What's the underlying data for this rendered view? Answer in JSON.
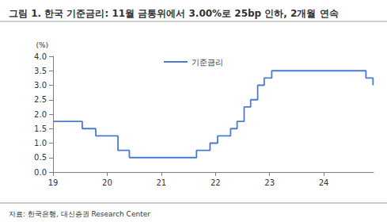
{
  "chart_data": {
    "type": "line",
    "title": "그림 1. 한국 기준금리: 11월 금통위에서 3.00%로 25bp 인하, 2개월 연속",
    "y_label": "(%)",
    "source": "자료: 한국은행, 대신증권 Research Center",
    "line_style": "step",
    "series": [
      {
        "name": "기준금리",
        "color": "#4a7bd0",
        "x": [
          2019.0,
          2019.54,
          2019.79,
          2020.2,
          2020.41,
          2021.65,
          2021.9,
          2022.04,
          2022.28,
          2022.4,
          2022.53,
          2022.65,
          2022.78,
          2022.9,
          2023.04,
          2024.78,
          2024.91
        ],
        "values": [
          1.75,
          1.5,
          1.25,
          0.75,
          0.5,
          0.75,
          1.0,
          1.25,
          1.5,
          1.75,
          2.25,
          2.5,
          3.0,
          3.25,
          3.5,
          3.25,
          3.0
        ]
      }
    ],
    "xlim": [
      2019,
      2024.92
    ],
    "xticks": [
      {
        "value": 2019,
        "label": "19"
      },
      {
        "value": 2020,
        "label": "20"
      },
      {
        "value": 2021,
        "label": "21"
      },
      {
        "value": 2022,
        "label": "22"
      },
      {
        "value": 2023,
        "label": "23"
      },
      {
        "value": 2024,
        "label": "24"
      }
    ],
    "ylim": [
      0,
      4
    ],
    "yticks": [
      {
        "value": 0,
        "label": "0.0"
      },
      {
        "value": 0.5,
        "label": "0.5"
      },
      {
        "value": 1,
        "label": "1.0"
      },
      {
        "value": 1.5,
        "label": "1.5"
      },
      {
        "value": 2,
        "label": "2.0"
      },
      {
        "value": 2.5,
        "label": "2.5"
      },
      {
        "value": 3,
        "label": "3.0"
      },
      {
        "value": 3.5,
        "label": "3.5"
      },
      {
        "value": 4,
        "label": "4.0"
      }
    ],
    "grid": false,
    "legend": "top"
  }
}
